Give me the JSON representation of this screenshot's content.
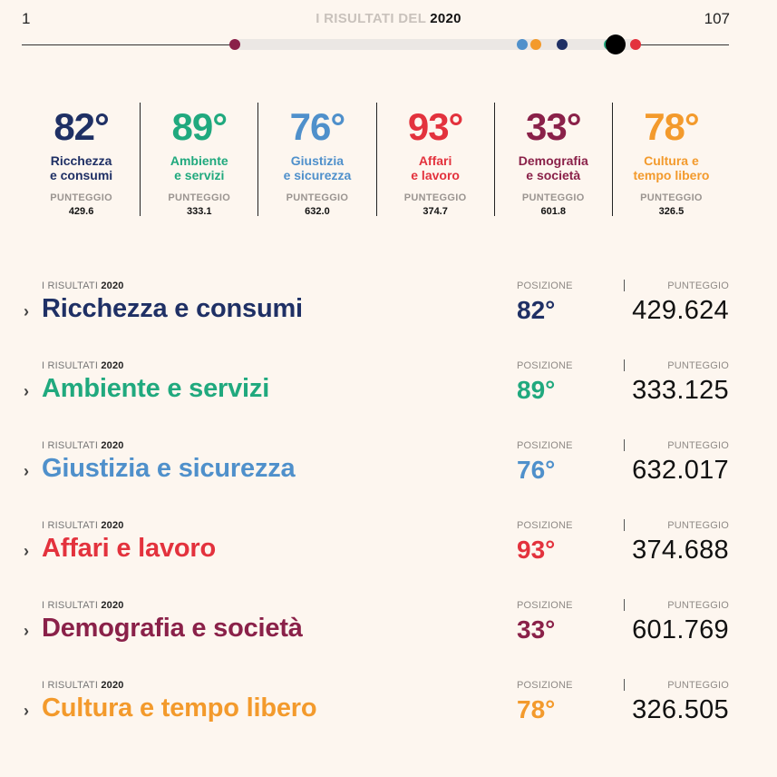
{
  "rank_strip": {
    "min": "1",
    "max": "107",
    "title_prefix": "I RISULTATI DEL",
    "title_year": "2020"
  },
  "categories": [
    {
      "rank": "82°",
      "name_line1": "Ricchezza",
      "name_line2": "e consumi",
      "title": "Ricchezza e consumi",
      "score_short": "429.6",
      "score": "429.624",
      "color": "#1f3065",
      "rank_value": 82
    },
    {
      "rank": "89°",
      "name_line1": "Ambiente",
      "name_line2": "e servizi",
      "title": "Ambiente e servizi",
      "score_short": "333.1",
      "score": "333.125",
      "color": "#20a97e",
      "rank_value": 89
    },
    {
      "rank": "76°",
      "name_line1": "Giustizia",
      "name_line2": "e sicurezza",
      "title": "Giustizia e sicurezza",
      "score_short": "632.0",
      "score": "632.017",
      "color": "#4f90cb",
      "rank_value": 76
    },
    {
      "rank": "93°",
      "name_line1": "Affari",
      "name_line2": "e lavoro",
      "title": "Affari e lavoro",
      "score_short": "374.7",
      "score": "374.688",
      "color": "#e3323d",
      "rank_value": 93
    },
    {
      "rank": "33°",
      "name_line1": "Demografia",
      "name_line2": "e società",
      "title": "Demografia e società",
      "score_short": "601.8",
      "score": "601.769",
      "color": "#8a2149",
      "rank_value": 33
    },
    {
      "rank": "78°",
      "name_line1": "Cultura e",
      "name_line2": "tempo libero",
      "title": "Cultura e tempo libero",
      "score_short": "326.5",
      "score": "326.505",
      "color": "#f39a2c",
      "rank_value": 78
    }
  ],
  "overall_rank_value": 90,
  "labels": {
    "punteggio_short": "PUNTEGGIO",
    "kicker_prefix": "I RISULTATI",
    "kicker_year": "2020",
    "posizione": "POSIZIONE",
    "punteggio": "PUNTEGGIO",
    "chevron": "›"
  }
}
